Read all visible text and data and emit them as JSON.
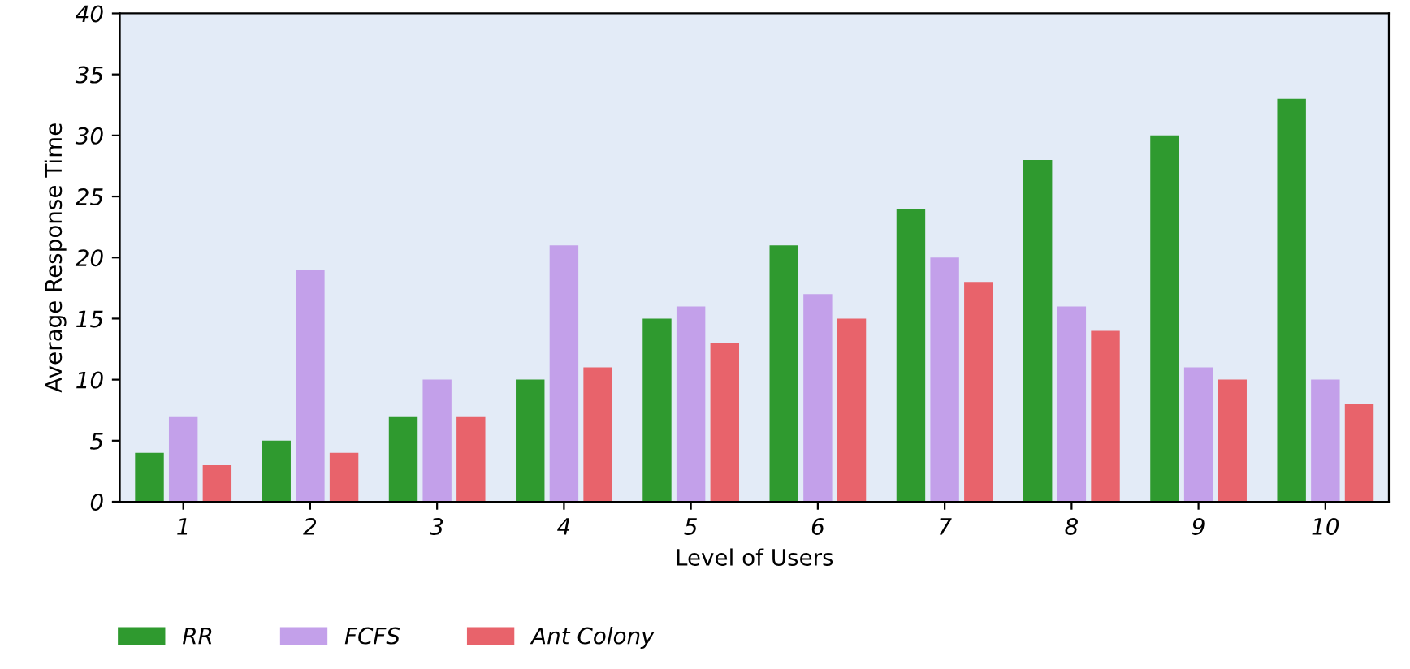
{
  "chart_data": {
    "type": "bar",
    "xlabel": "Level of Users",
    "ylabel": "Average Response Time",
    "categories": [
      "1",
      "2",
      "3",
      "4",
      "5",
      "6",
      "7",
      "8",
      "9",
      "10"
    ],
    "series": [
      {
        "name": "RR",
        "color": "#2f9a2f",
        "values": [
          4,
          5,
          7,
          10,
          15,
          21,
          24,
          28,
          30,
          33
        ]
      },
      {
        "name": "FCFS",
        "color": "#c3a0ea",
        "values": [
          7,
          19,
          10,
          21,
          16,
          17,
          20,
          16,
          11,
          10
        ]
      },
      {
        "name": "Ant Colony",
        "color": "#e8636b",
        "values": [
          3,
          4,
          7,
          11,
          13,
          15,
          18,
          14,
          10,
          8
        ]
      }
    ],
    "ylim": [
      0,
      40
    ],
    "yticks": [
      0,
      5,
      10,
      15,
      20,
      25,
      30,
      35,
      40
    ],
    "grid": false,
    "legend": "bottom left"
  }
}
